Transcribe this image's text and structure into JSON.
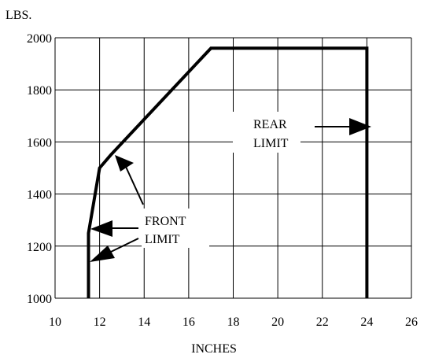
{
  "chart_data": {
    "type": "line",
    "title": "",
    "xlabel": "INCHES",
    "ylabel": "LBS.",
    "xlim": [
      10,
      26
    ],
    "ylim": [
      1000,
      2000
    ],
    "x_ticks": [
      10,
      12,
      14,
      16,
      18,
      20,
      22,
      24,
      26
    ],
    "y_ticks": [
      1000,
      1200,
      1400,
      1600,
      1800,
      2000
    ],
    "x_tick_labels": [
      "10",
      "12",
      "14",
      "16",
      "18",
      "20",
      "22",
      "24",
      "26"
    ],
    "y_tick_labels": [
      "1000",
      "1200",
      "1400",
      "1600",
      "1800",
      "2000"
    ],
    "grid": true,
    "series": [
      {
        "values": [
          {
            "x": 11.5,
            "y": 1000
          },
          {
            "x": 11.5,
            "y": 1250
          },
          {
            "x": 12.0,
            "y": 1500
          },
          {
            "x": 12.5,
            "y": 1550
          },
          {
            "x": 17.0,
            "y": 1960
          },
          {
            "x": 24.0,
            "y": 1960
          },
          {
            "x": 24.0,
            "y": 1000
          }
        ]
      }
    ],
    "annotations": [
      {
        "text": "FRONT LIMIT",
        "lines": [
          "FRONT",
          "LIMIT"
        ]
      },
      {
        "text": "REAR LIMIT",
        "lines": [
          "REAR",
          "LIMIT"
        ]
      }
    ]
  }
}
